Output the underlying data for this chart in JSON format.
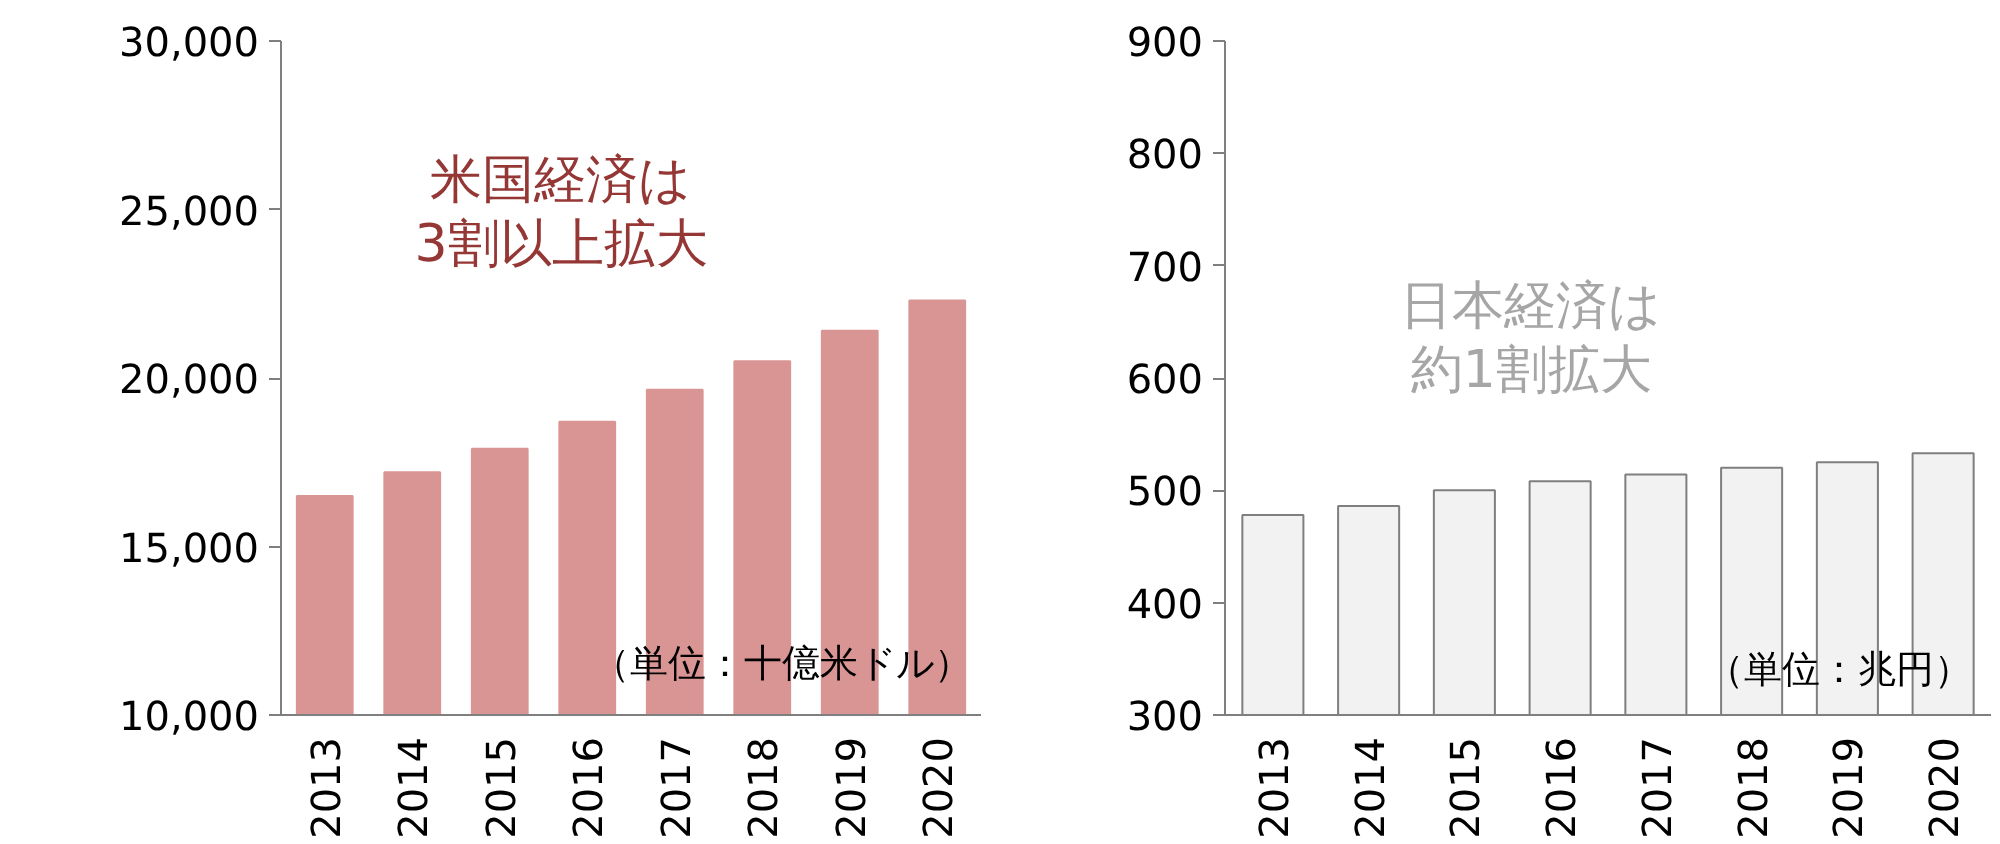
{
  "chart_data": [
    {
      "type": "bar",
      "categories": [
        "2013",
        "2014",
        "2015",
        "2016",
        "2017",
        "2018",
        "2019",
        "2020"
      ],
      "series": [
        {
          "color": "#d99594",
          "values": [
            16500,
            17200,
            17900,
            18700,
            19650,
            20500,
            21400,
            22300
          ]
        }
      ],
      "ylim": [
        10000,
        30000
      ],
      "yticks": [
        {
          "value": 10000,
          "label": "10,000"
        },
        {
          "value": 15000,
          "label": "15,000"
        },
        {
          "value": 20000,
          "label": "20,000"
        },
        {
          "value": 25000,
          "label": "25,000"
        },
        {
          "value": 30000,
          "label": "30,000"
        }
      ],
      "grid": false,
      "annotations": [
        "米国経済は3割以上拡大",
        "（単位：十億米ドル）"
      ]
    },
    {
      "type": "bar",
      "categories": [
        "2013",
        "2014",
        "2015",
        "2016",
        "2017",
        "2018",
        "2019",
        "2020"
      ],
      "series": [
        {
          "color": "#f2f2f2",
          "values": [
            478,
            486,
            500,
            508,
            514,
            520,
            525,
            533
          ]
        }
      ],
      "ylim": [
        300,
        900
      ],
      "yticks": [
        300,
        400,
        500,
        600,
        700,
        800,
        900
      ],
      "grid": false,
      "annotations": [
        "日本経済は約1割拡大",
        "（単位：兆円）"
      ]
    }
  ]
}
